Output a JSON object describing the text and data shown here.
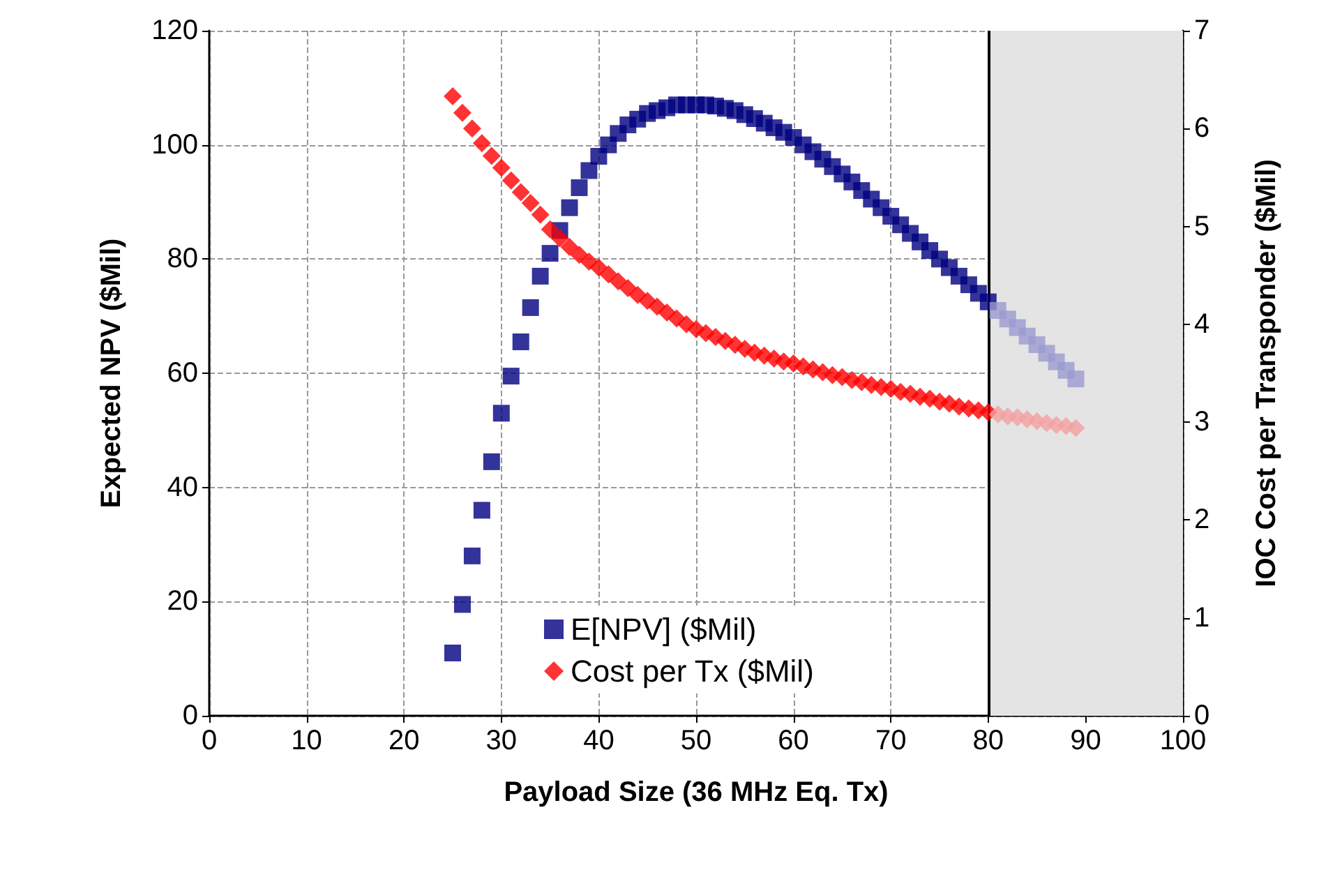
{
  "chart_data": {
    "type": "scatter",
    "xlabel": "Payload Size (36 MHz Eq. Tx)",
    "ylabel": "Expected NPV ($Mil)",
    "y2label": "IOC Cost per Transponder ($Mil)",
    "xlim": [
      0,
      100
    ],
    "xticks": [
      0,
      10,
      20,
      30,
      40,
      50,
      60,
      70,
      80,
      90,
      100
    ],
    "ylim": [
      0,
      120
    ],
    "yticks": [
      0,
      20,
      40,
      60,
      80,
      100,
      120
    ],
    "y2lim": [
      0,
      7
    ],
    "y2ticks": [
      0,
      1,
      2,
      3,
      4,
      5,
      6,
      7
    ],
    "grid": true,
    "legend": "bottom",
    "bands": [
      {
        "axis": "x",
        "from": 80,
        "to": 100,
        "color": "#e4e4e4"
      }
    ],
    "ref_lines": [
      {
        "axis": "x",
        "value": 80,
        "color": "#000000"
      }
    ],
    "series": [
      {
        "name": "E[NPV] ($Mil)",
        "color": "#000080",
        "marker": "square",
        "x": [
          25,
          26,
          27,
          28,
          29,
          30,
          31,
          32,
          33,
          34,
          35,
          36,
          37,
          38,
          39,
          40,
          41,
          42,
          43,
          44,
          45,
          46,
          47,
          48,
          49,
          50,
          51,
          52,
          53,
          54,
          55,
          56,
          57,
          58,
          59,
          60,
          61,
          62,
          63,
          64,
          65,
          66,
          67,
          68,
          69,
          70,
          71,
          72,
          73,
          74,
          75,
          76,
          77,
          78,
          79,
          80
        ],
        "values": [
          11,
          19.5,
          28,
          36,
          44.5,
          53,
          59.5,
          65.5,
          71.5,
          77,
          81,
          85,
          89,
          92.5,
          95.5,
          98,
          100,
          102,
          103.5,
          104.5,
          105.5,
          106,
          106.5,
          107,
          107,
          107,
          107,
          106.8,
          106.4,
          106,
          105.3,
          104.6,
          103.8,
          103,
          102.2,
          101.3,
          100,
          98.8,
          97.5,
          96.2,
          94.9,
          93.5,
          92,
          90.5,
          89,
          87.5,
          86,
          84.5,
          83,
          81.5,
          80,
          78.5,
          77,
          75.5,
          74,
          72.5
        ]
      },
      {
        "name": "Cost per Tx ($Mil)",
        "color": "#ff0000",
        "marker": "diamond",
        "axis": "y2",
        "x": [
          25,
          26,
          27,
          28,
          29,
          30,
          31,
          32,
          33,
          34,
          35,
          36,
          37,
          38,
          39,
          40,
          41,
          42,
          43,
          44,
          45,
          46,
          47,
          48,
          49,
          50,
          51,
          52,
          53,
          54,
          55,
          56,
          57,
          58,
          59,
          60,
          61,
          62,
          63,
          64,
          65,
          66,
          67,
          68,
          69,
          70,
          71,
          72,
          73,
          74,
          75,
          76,
          77,
          78,
          79,
          80
        ],
        "values": [
          6.33,
          6.16,
          6.0,
          5.85,
          5.72,
          5.6,
          5.47,
          5.35,
          5.24,
          5.12,
          4.97,
          4.88,
          4.79,
          4.71,
          4.64,
          4.58,
          4.51,
          4.44,
          4.37,
          4.3,
          4.24,
          4.18,
          4.12,
          4.06,
          4.0,
          3.95,
          3.91,
          3.87,
          3.83,
          3.79,
          3.75,
          3.71,
          3.68,
          3.65,
          3.62,
          3.6,
          3.57,
          3.54,
          3.51,
          3.48,
          3.46,
          3.43,
          3.41,
          3.38,
          3.36,
          3.34,
          3.31,
          3.29,
          3.26,
          3.24,
          3.21,
          3.19,
          3.16,
          3.14,
          3.12,
          3.1
        ]
      },
      {
        "color": "#9a9ad0",
        "marker": "square",
        "x": [
          81,
          82,
          83,
          84,
          85,
          86,
          87,
          88,
          89
        ],
        "values": [
          71,
          69.5,
          68,
          66.5,
          65,
          63.5,
          62,
          60.5,
          59
        ]
      },
      {
        "color": "#f4a0a0",
        "marker": "diamond",
        "axis": "y2",
        "x": [
          81,
          82,
          83,
          84,
          85,
          86,
          87,
          88,
          89
        ],
        "values": [
          3.08,
          3.06,
          3.05,
          3.03,
          3.01,
          2.99,
          2.97,
          2.96,
          2.94
        ]
      }
    ]
  }
}
